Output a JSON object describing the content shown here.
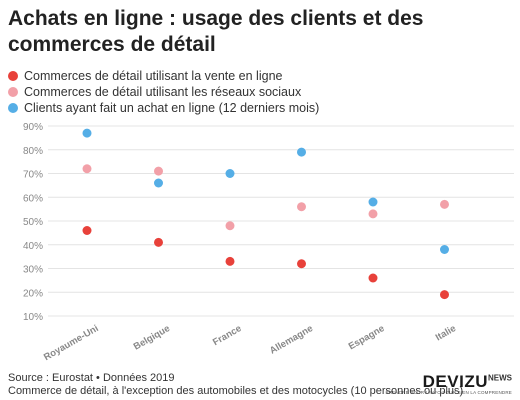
{
  "title": "Achats en ligne : usage des clients et des commerces de détail",
  "colors": {
    "series_online_sales": "#e8413a",
    "series_social": "#f2a0a8",
    "series_buyers": "#55aee6",
    "grid": "#e4e4e4",
    "tick_text": "#888888"
  },
  "chart_data": {
    "type": "scatter",
    "categories": [
      "Royaume-Uni",
      "Belgique",
      "France",
      "Allemagne",
      "Espagne",
      "Italie"
    ],
    "series": [
      {
        "name": "Commerces de détail utilisant la vente en ligne",
        "color": "#e8413a",
        "values": [
          46,
          41,
          33,
          32,
          26,
          19
        ]
      },
      {
        "name": "Commerces de détail utilisant les réseaux sociaux",
        "color": "#f2a0a8",
        "values": [
          72,
          71,
          48,
          56,
          53,
          57
        ]
      },
      {
        "name": "Clients ayant fait un achat en ligne (12 derniers mois)",
        "color": "#55aee6",
        "values": [
          87,
          66,
          70,
          79,
          58,
          38
        ]
      }
    ],
    "ylim": [
      10,
      90
    ],
    "yticks": [
      "10%",
      "20%",
      "30%",
      "40%",
      "50%",
      "60%",
      "70%",
      "80%",
      "90%"
    ],
    "grid": true,
    "legend_position": "top-left"
  },
  "footer": {
    "source": "Source : Eurostat • Données 2019",
    "note": "Commerce de détail, à l'exception des automobiles et des motocycles (10 personnes ou plus)"
  },
  "brand": {
    "name": "DEVIZU",
    "suffix": "NEWS",
    "tagline": "PRENDRE POUR L'INFO POUR BIEN LA COMPRENDRE"
  }
}
